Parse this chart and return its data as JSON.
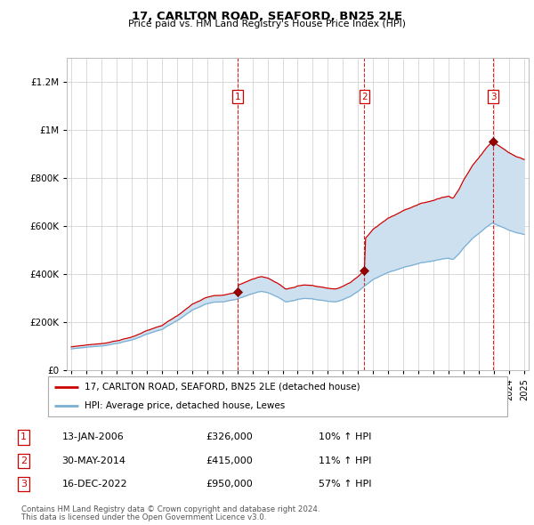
{
  "title": "17, CARLTON ROAD, SEAFORD, BN25 2LE",
  "subtitle": "Price paid vs. HM Land Registry's House Price Index (HPI)",
  "property_label": "17, CARLTON ROAD, SEAFORD, BN25 2LE (detached house)",
  "hpi_label": "HPI: Average price, detached house, Lewes",
  "footnote1": "Contains HM Land Registry data © Crown copyright and database right 2024.",
  "footnote2": "This data is licensed under the Open Government Licence v3.0.",
  "transactions": [
    {
      "num": 1,
      "date": "13-JAN-2006",
      "price": "£326,000",
      "pct": "10% ↑ HPI"
    },
    {
      "num": 2,
      "date": "30-MAY-2014",
      "price": "£415,000",
      "pct": "11% ↑ HPI"
    },
    {
      "num": 3,
      "date": "16-DEC-2022",
      "price": "£950,000",
      "pct": "57% ↑ HPI"
    }
  ],
  "transaction_dates_decimal": [
    2006.04,
    2014.42,
    2022.96
  ],
  "transaction_prices": [
    326000,
    415000,
    950000
  ],
  "ylim": [
    0,
    1300000
  ],
  "yticks": [
    0,
    200000,
    400000,
    600000,
    800000,
    1000000,
    1200000
  ],
  "ytick_labels": [
    "£0",
    "£200K",
    "£400K",
    "£600K",
    "£800K",
    "£1M",
    "£1.2M"
  ],
  "property_color": "#cc0000",
  "hpi_color": "#7bafd4",
  "fill_color": "#cce0f0",
  "vline_color": "#cc0000",
  "background_color": "#ffffff",
  "grid_color": "#cccccc",
  "xlim_start": 1994.7,
  "xlim_end": 2025.3
}
